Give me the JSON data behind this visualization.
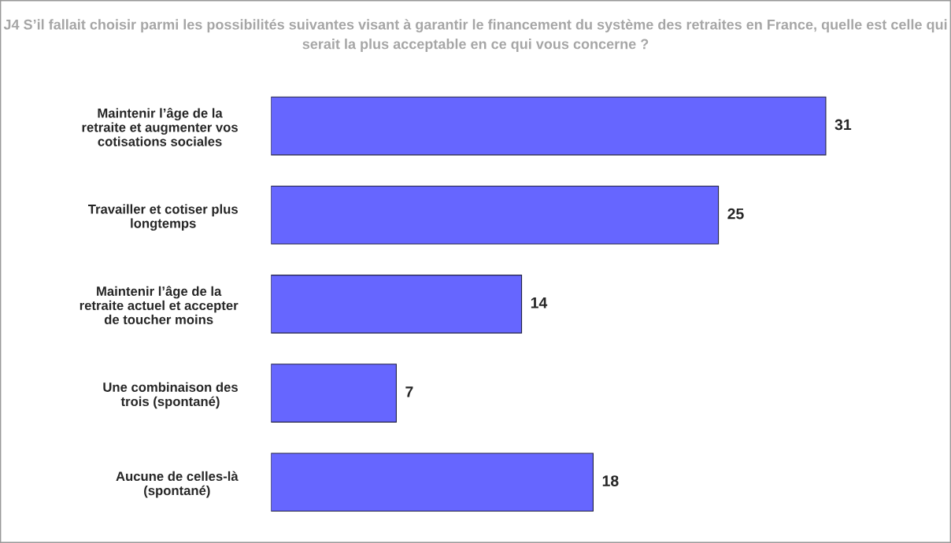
{
  "chart_data": {
    "type": "bar",
    "orientation": "horizontal",
    "title": "J4 S’il fallait choisir parmi les possibilités suivantes visant à garantir le financement du système des retraites en France, quelle est celle qui serait la plus acceptable en ce qui vous concerne ?",
    "categories": [
      "Maintenir l’âge de la\nretraite et augmenter vos\ncotisations sociales",
      "Travailler et cotiser plus\nlongtemps",
      "Maintenir l’âge de la\nretraite actuel et accepter\nde toucher moins",
      "Une combinaison des\ntrois (spontané)",
      "Aucune de celles-là\n(spontané)"
    ],
    "values": [
      31,
      25,
      14,
      7,
      18
    ],
    "color": "#6666ff",
    "data_labels": true,
    "tick_labels": "y",
    "grid": false,
    "legend": false
  }
}
